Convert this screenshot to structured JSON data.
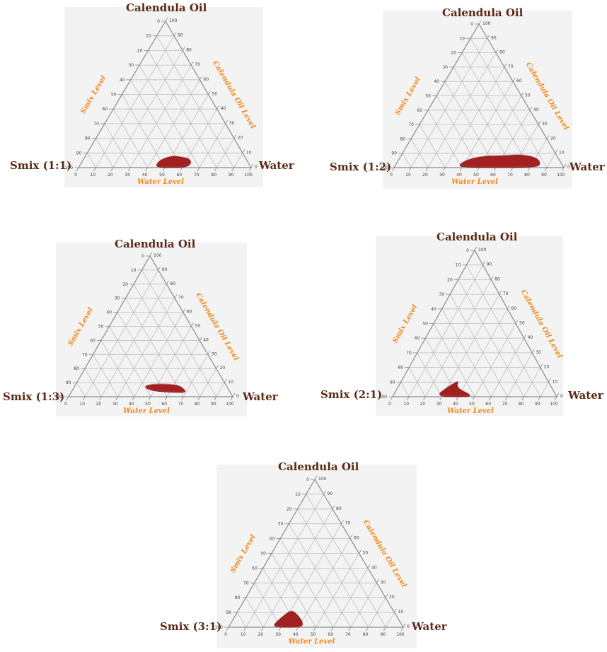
{
  "chart_data": [
    {
      "type": "ternary",
      "vertices": {
        "top": "Calendula Oil",
        "left": "Smix (1:1)",
        "right": "Water"
      },
      "axis_labels": {
        "left": "Smix Level",
        "right": "Calendula Oil Level",
        "bottom": "Water Level"
      },
      "ticks": [
        0,
        10,
        20,
        30,
        40,
        50,
        60,
        70,
        80,
        90,
        100
      ],
      "region_color": "#a32020",
      "region": [
        {
          "oil": 0,
          "water": 45,
          "smix": 55
        },
        {
          "oil": 0,
          "water": 62,
          "smix": 38
        },
        {
          "oil": 3,
          "water": 64,
          "smix": 33
        },
        {
          "oil": 6,
          "water": 61,
          "smix": 33
        },
        {
          "oil": 7,
          "water": 56,
          "smix": 37
        },
        {
          "oil": 8,
          "water": 51,
          "smix": 41
        },
        {
          "oil": 6,
          "water": 46,
          "smix": 48
        },
        {
          "oil": 3,
          "water": 44,
          "smix": 53
        }
      ]
    },
    {
      "type": "ternary",
      "vertices": {
        "top": "Calendula Oil",
        "left": "Smix (1:2)",
        "right": "Water"
      },
      "axis_labels": {
        "left": "Smix Level",
        "right": "Calendula Oil Level",
        "bottom": "Water Level"
      },
      "ticks": [
        0,
        10,
        20,
        30,
        40,
        50,
        60,
        70,
        80,
        90,
        100
      ],
      "region_color": "#a32020",
      "region": [
        {
          "oil": 0,
          "water": 38,
          "smix": 62
        },
        {
          "oil": 0,
          "water": 84,
          "smix": 16
        },
        {
          "oil": 3,
          "water": 85,
          "smix": 12
        },
        {
          "oil": 7,
          "water": 80,
          "smix": 13
        },
        {
          "oil": 9,
          "water": 70,
          "smix": 21
        },
        {
          "oil": 8,
          "water": 60,
          "smix": 32
        },
        {
          "oil": 8,
          "water": 50,
          "smix": 42
        },
        {
          "oil": 6,
          "water": 42,
          "smix": 52
        },
        {
          "oil": 3,
          "water": 38,
          "smix": 59
        }
      ]
    },
    {
      "type": "ternary",
      "vertices": {
        "top": "Calendula Oil",
        "left": "Smix (1:3)",
        "right": "Water"
      },
      "axis_labels": {
        "left": "Smix Level",
        "right": "Calendula Oil Level",
        "bottom": "Water Level"
      },
      "ticks": [
        0,
        10,
        20,
        30,
        40,
        50,
        60,
        70,
        80,
        90,
        100
      ],
      "region_color": "#a32020",
      "region": [
        {
          "oil": 8,
          "water": 43,
          "smix": 49
        },
        {
          "oil": 9,
          "water": 52,
          "smix": 39
        },
        {
          "oil": 8,
          "water": 63,
          "smix": 29
        },
        {
          "oil": 5,
          "water": 68,
          "smix": 27
        },
        {
          "oil": 3,
          "water": 70,
          "smix": 27
        },
        {
          "oil": 3,
          "water": 62,
          "smix": 35
        },
        {
          "oil": 4,
          "water": 50,
          "smix": 46
        },
        {
          "oil": 6,
          "water": 44,
          "smix": 50
        }
      ]
    },
    {
      "type": "ternary",
      "vertices": {
        "top": "Calendula Oil",
        "left": "Smix (2:1)",
        "right": "Water"
      },
      "axis_labels": {
        "left": "Smix Level",
        "right": "Calendula Oil Level",
        "bottom": "Water Level"
      },
      "ticks": [
        0,
        10,
        20,
        30,
        40,
        50,
        60,
        70,
        80,
        90,
        100
      ],
      "region_color": "#a32020",
      "region": [
        {
          "oil": 0,
          "water": 26,
          "smix": 74
        },
        {
          "oil": 0,
          "water": 48,
          "smix": 52
        },
        {
          "oil": 2,
          "water": 45,
          "smix": 53
        },
        {
          "oil": 5,
          "water": 38,
          "smix": 57
        },
        {
          "oil": 8,
          "water": 35,
          "smix": 57
        },
        {
          "oil": 11,
          "water": 35,
          "smix": 54
        },
        {
          "oil": 6,
          "water": 30,
          "smix": 64
        }
      ]
    },
    {
      "type": "ternary",
      "vertices": {
        "top": "Calendula Oil",
        "left": "Smix (3:1)",
        "right": "Water"
      },
      "axis_labels": {
        "left": "Smix Level",
        "right": "Calendula Oil Level",
        "bottom": "Water Level"
      },
      "ticks": [
        0,
        10,
        20,
        30,
        40,
        50,
        60,
        70,
        80,
        90,
        100
      ],
      "region_color": "#a32020",
      "region": [
        {
          "oil": 0,
          "water": 25,
          "smix": 75
        },
        {
          "oil": 0,
          "water": 42,
          "smix": 58
        },
        {
          "oil": 3,
          "water": 41,
          "smix": 56
        },
        {
          "oil": 6,
          "water": 38,
          "smix": 56
        },
        {
          "oil": 10,
          "water": 33,
          "smix": 57
        },
        {
          "oil": 11,
          "water": 30,
          "smix": 59
        },
        {
          "oil": 8,
          "water": 28,
          "smix": 64
        },
        {
          "oil": 4,
          "water": 26,
          "smix": 70
        }
      ]
    }
  ]
}
